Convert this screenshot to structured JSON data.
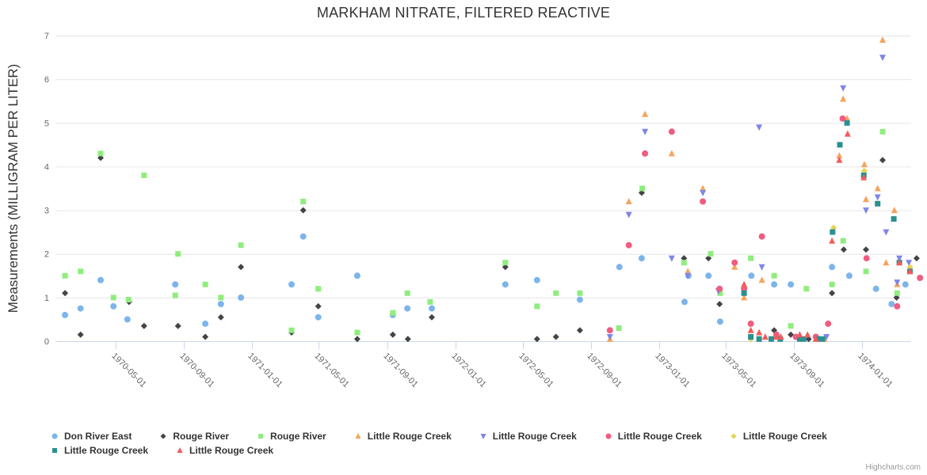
{
  "title": "MARKHAM NITRATE, FILTERED REACTIVE",
  "credits_label": "Highcharts.com",
  "chart_data": {
    "type": "scatter",
    "title": "MARKHAM NITRATE, FILTERED REACTIVE",
    "xlabel": "",
    "ylabel": "Measurements (MILLIGRAM PER LITER)",
    "ylim": [
      0,
      7
    ],
    "y_ticks": [
      0,
      1,
      2,
      3,
      4,
      5,
      6,
      7
    ],
    "x_ticks": [
      "1970-05-01",
      "1970-09-01",
      "1971-01-01",
      "1971-05-01",
      "1971-09-01",
      "1972-01-01",
      "1972-05-01",
      "1972-09-01",
      "1973-01-01",
      "1973-05-01",
      "1973-09-01",
      "1974-01-01"
    ],
    "grid": "horizontal",
    "legend_position": "bottom",
    "grid_color": "#e6e6e6",
    "axis_line_color": "#ccd6eb",
    "tick_label_color": "#666666",
    "series": [
      {
        "name": "Don River East",
        "color": "#7cb5ec",
        "marker": "circle",
        "points": [
          [
            "1970-01-30",
            0.6
          ],
          [
            "1970-02-27",
            0.75
          ],
          [
            "1970-04-04",
            1.4
          ],
          [
            "1970-04-27",
            0.8
          ],
          [
            "1970-05-22",
            0.5
          ],
          [
            "1970-08-16",
            1.3
          ],
          [
            "1970-10-09",
            0.4
          ],
          [
            "1970-11-06",
            0.85
          ],
          [
            "1970-12-12",
            1.0
          ],
          [
            "1971-03-13",
            1.3
          ],
          [
            "1971-04-03",
            2.4
          ],
          [
            "1971-04-30",
            0.55
          ],
          [
            "1971-07-09",
            1.5
          ],
          [
            "1971-09-11",
            0.6
          ],
          [
            "1971-10-07",
            0.75
          ],
          [
            "1971-11-20",
            0.75
          ],
          [
            "1972-03-31",
            1.3
          ],
          [
            "1972-05-27",
            1.4
          ],
          [
            "1972-08-12",
            0.95
          ],
          [
            "1972-10-22",
            1.7
          ],
          [
            "1972-12-01",
            1.9
          ],
          [
            "1973-02-16",
            0.9
          ],
          [
            "1973-02-23",
            1.5
          ],
          [
            "1973-03-31",
            1.5
          ],
          [
            "1973-04-21",
            0.45
          ],
          [
            "1973-06-16",
            1.5
          ],
          [
            "1973-07-27",
            1.3
          ],
          [
            "1973-08-26",
            1.3
          ],
          [
            "1973-11-08",
            1.7
          ],
          [
            "1973-12-09",
            1.5
          ],
          [
            "1974-01-26",
            1.2
          ],
          [
            "1974-02-23",
            0.85
          ],
          [
            "1974-03-20",
            1.3
          ]
        ]
      },
      {
        "name": "Rouge River",
        "color": "#434348",
        "marker": "diamond",
        "points": [
          [
            "1970-01-30",
            1.1
          ],
          [
            "1970-02-27",
            0.15
          ],
          [
            "1970-04-04",
            4.2
          ],
          [
            "1970-05-25",
            0.9
          ],
          [
            "1970-06-21",
            0.35
          ],
          [
            "1970-08-21",
            0.35
          ],
          [
            "1970-10-09",
            0.1
          ],
          [
            "1970-11-06",
            0.55
          ],
          [
            "1970-12-12",
            1.7
          ],
          [
            "1971-03-13",
            0.2
          ],
          [
            "1971-04-03",
            3.0
          ],
          [
            "1971-04-30",
            0.8
          ],
          [
            "1971-07-09",
            0.05
          ],
          [
            "1971-09-11",
            0.15
          ],
          [
            "1971-10-08",
            0.05
          ],
          [
            "1971-11-20",
            0.55
          ],
          [
            "1972-03-31",
            1.7
          ],
          [
            "1972-05-27",
            0.05
          ],
          [
            "1972-06-30",
            0.1
          ],
          [
            "1972-08-12",
            0.25
          ],
          [
            "1972-12-01",
            3.4
          ],
          [
            "1973-02-15",
            1.9
          ],
          [
            "1973-03-31",
            1.9
          ],
          [
            "1973-04-20",
            0.85
          ],
          [
            "1973-07-27",
            0.25
          ],
          [
            "1973-08-26",
            0.15
          ],
          [
            "1973-09-27",
            0.05
          ],
          [
            "1973-11-08",
            1.1
          ],
          [
            "1973-11-29",
            2.1
          ],
          [
            "1974-01-08",
            2.1
          ],
          [
            "1974-02-07",
            4.15
          ],
          [
            "1974-03-04",
            1.0
          ],
          [
            "1974-04-09",
            1.9
          ]
        ]
      },
      {
        "name": "Rouge River",
        "color": "#90ed7d",
        "marker": "square",
        "points": [
          [
            "1970-01-30",
            1.5
          ],
          [
            "1970-02-27",
            1.6
          ],
          [
            "1970-04-04",
            4.3
          ],
          [
            "1970-04-27",
            1.0
          ],
          [
            "1970-05-24",
            0.95
          ],
          [
            "1970-06-21",
            3.8
          ],
          [
            "1970-08-16",
            1.05
          ],
          [
            "1970-08-21",
            2.0
          ],
          [
            "1970-10-09",
            1.3
          ],
          [
            "1970-11-06",
            1.0
          ],
          [
            "1970-12-12",
            2.2
          ],
          [
            "1971-03-13",
            0.25
          ],
          [
            "1971-04-03",
            3.2
          ],
          [
            "1971-04-30",
            1.2
          ],
          [
            "1971-07-09",
            0.2
          ],
          [
            "1971-09-11",
            0.65
          ],
          [
            "1971-10-07",
            1.1
          ],
          [
            "1971-11-17",
            0.9
          ],
          [
            "1972-03-31",
            1.8
          ],
          [
            "1972-05-27",
            0.8
          ],
          [
            "1972-06-30",
            1.1
          ],
          [
            "1972-08-12",
            1.1
          ],
          [
            "1972-10-21",
            0.3
          ],
          [
            "1972-12-02",
            3.5
          ],
          [
            "1973-02-15",
            1.8
          ],
          [
            "1973-04-04",
            2.0
          ],
          [
            "1973-04-21",
            1.1
          ],
          [
            "1973-06-15",
            1.9
          ],
          [
            "1973-07-27",
            1.5
          ],
          [
            "1973-08-26",
            0.35
          ],
          [
            "1973-09-23",
            1.2
          ],
          [
            "1973-11-08",
            1.3
          ],
          [
            "1973-11-28",
            2.3
          ],
          [
            "1974-01-08",
            1.6
          ],
          [
            "1974-02-07",
            4.8
          ],
          [
            "1974-03-05",
            1.1
          ]
        ]
      },
      {
        "name": "Little Rouge Creek",
        "color": "#f7a35c",
        "marker": "triangle",
        "points": [
          [
            "1972-10-05",
            0.05
          ],
          [
            "1972-11-08",
            3.2
          ],
          [
            "1972-12-07",
            5.2
          ],
          [
            "1973-01-24",
            4.3
          ],
          [
            "1973-02-22",
            1.6
          ],
          [
            "1973-03-21",
            3.5
          ],
          [
            "1973-05-17",
            1.7
          ],
          [
            "1973-06-03",
            1.0
          ],
          [
            "1973-07-05",
            1.4
          ],
          [
            "1973-10-25",
            0.05
          ],
          [
            "1973-11-21",
            4.25
          ],
          [
            "1973-11-28",
            5.55
          ],
          [
            "1973-12-05",
            5.1
          ],
          [
            "1974-01-05",
            4.05
          ],
          [
            "1974-01-08",
            3.25
          ],
          [
            "1974-01-29",
            3.5
          ],
          [
            "1974-02-07",
            6.9
          ],
          [
            "1974-02-13",
            1.8
          ],
          [
            "1974-02-28",
            3.0
          ],
          [
            "1974-03-05",
            1.3
          ]
        ]
      },
      {
        "name": "Little Rouge Creek",
        "color": "#8085e9",
        "marker": "triangle-down",
        "points": [
          [
            "1972-10-05",
            0.1
          ],
          [
            "1972-11-08",
            2.9
          ],
          [
            "1972-12-07",
            4.8
          ],
          [
            "1973-01-24",
            1.9
          ],
          [
            "1973-02-22",
            1.5
          ],
          [
            "1973-03-21",
            3.4
          ],
          [
            "1973-04-18",
            1.15
          ],
          [
            "1973-06-30",
            4.9
          ],
          [
            "1973-07-05",
            1.7
          ],
          [
            "1973-10-29",
            0.1
          ],
          [
            "1973-11-28",
            5.8
          ],
          [
            "1974-01-08",
            3.0
          ],
          [
            "1974-01-29",
            3.3
          ],
          [
            "1974-02-07",
            6.5
          ],
          [
            "1974-02-13",
            2.5
          ],
          [
            "1974-03-05",
            1.35
          ],
          [
            "1974-03-09",
            1.9
          ],
          [
            "1974-03-26",
            1.8
          ]
        ]
      },
      {
        "name": "Little Rouge Creek",
        "color": "#f15c80",
        "marker": "circle",
        "points": [
          [
            "1972-10-05",
            0.25
          ],
          [
            "1972-11-08",
            2.2
          ],
          [
            "1972-12-07",
            4.3
          ],
          [
            "1973-01-24",
            4.8
          ],
          [
            "1973-03-21",
            3.2
          ],
          [
            "1973-04-20",
            1.2
          ],
          [
            "1973-05-17",
            1.8
          ],
          [
            "1973-06-03",
            1.2
          ],
          [
            "1973-06-15",
            0.4
          ],
          [
            "1973-07-05",
            2.4
          ],
          [
            "1973-07-31",
            0.15
          ],
          [
            "1973-09-04",
            0.1
          ],
          [
            "1973-10-10",
            0.1
          ],
          [
            "1973-11-01",
            0.4
          ],
          [
            "1973-11-27",
            5.1
          ],
          [
            "1974-01-09",
            1.9
          ],
          [
            "1974-03-05",
            0.8
          ],
          [
            "1974-04-15",
            1.45
          ]
        ]
      },
      {
        "name": "Little Rouge Creek",
        "color": "#e4d354",
        "marker": "diamond",
        "points": [
          [
            "1973-06-03",
            1.1
          ],
          [
            "1973-06-15",
            0.05
          ],
          [
            "1973-11-11",
            2.6
          ],
          [
            "1974-01-05",
            3.9
          ],
          [
            "1974-03-28",
            1.7
          ]
        ]
      },
      {
        "name": "Little Rouge Creek",
        "color": "#2b908f",
        "marker": "square",
        "points": [
          [
            "1973-06-03",
            1.1
          ],
          [
            "1973-06-15",
            0.1
          ],
          [
            "1973-06-30",
            0.05
          ],
          [
            "1973-07-22",
            0.05
          ],
          [
            "1973-08-07",
            0.05
          ],
          [
            "1973-09-11",
            0.05
          ],
          [
            "1973-09-18",
            0.05
          ],
          [
            "1973-10-13",
            0.05
          ],
          [
            "1973-10-22",
            0.05
          ],
          [
            "1973-11-09",
            2.5
          ],
          [
            "1973-11-22",
            4.5
          ],
          [
            "1973-12-05",
            5.0
          ],
          [
            "1974-01-04",
            3.8
          ],
          [
            "1974-01-29",
            3.15
          ],
          [
            "1974-02-27",
            2.8
          ],
          [
            "1974-03-09",
            1.8
          ],
          [
            "1974-03-28",
            1.6
          ]
        ]
      },
      {
        "name": "Little Rouge Creek",
        "color": "#f45b5b",
        "marker": "triangle",
        "points": [
          [
            "1973-06-03",
            1.3
          ],
          [
            "1973-06-15",
            0.25
          ],
          [
            "1973-06-30",
            0.2
          ],
          [
            "1973-07-11",
            0.1
          ],
          [
            "1973-07-31",
            0.1
          ],
          [
            "1973-08-08",
            0.1
          ],
          [
            "1973-09-11",
            0.15
          ],
          [
            "1973-09-25",
            0.15
          ],
          [
            "1973-10-10",
            0.05
          ],
          [
            "1973-11-08",
            2.3
          ],
          [
            "1973-11-21",
            4.15
          ],
          [
            "1973-12-06",
            4.75
          ],
          [
            "1974-01-04",
            3.75
          ],
          [
            "1974-03-09",
            1.8
          ],
          [
            "1974-03-28",
            1.6
          ]
        ]
      }
    ]
  }
}
